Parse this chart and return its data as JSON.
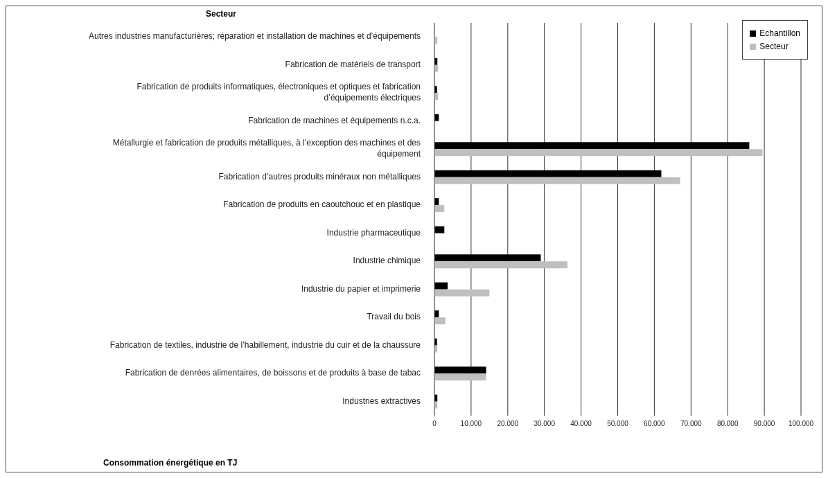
{
  "chart_data": {
    "type": "bar",
    "orientation": "horizontal",
    "ylabel": "Secteur",
    "xlabel": "Consommation énergétique en TJ",
    "categories": [
      "Autres industries manufacturières; réparation et installation de machines et d’équipements",
      "Fabrication de matériels de transport",
      "Fabrication de produits informatiques, électroniques et optiques et fabrication d’équipements électriques",
      "Fabrication de machines et équipements n.c.a.",
      "Métallurgie et fabrication de produits métalliques, à l’exception des machines et des équipement",
      "Fabrication d’autres produits minéraux non métalliques",
      "Fabrication de produits en caoutchouc et en plastique",
      "Industrie pharmaceutique",
      "Industrie chimique",
      "Industrie du papier et imprimerie",
      "Travail du bois",
      "Fabrication de textiles, industrie de l’habillement, industrie du cuir et de la chaussure",
      "Fabrication de denrées alimentaires, de boissons et de produits à base de tabac",
      "Industries extractives"
    ],
    "series": [
      {
        "name": "Echantillon",
        "color": "#000000",
        "values": [
          null,
          800,
          700,
          1200,
          85900,
          61900,
          1200,
          2700,
          29000,
          3600,
          1200,
          700,
          14100,
          800
        ]
      },
      {
        "name": "Secteur",
        "color": "#bfbfbf",
        "values": [
          800,
          1000,
          1000,
          null,
          89500,
          67000,
          2700,
          null,
          36300,
          15000,
          3000,
          800,
          14100,
          800
        ]
      }
    ],
    "xlim": [
      0,
      100000
    ],
    "xticks": [
      0,
      {
        "value": 10000,
        "label": "10.000"
      },
      {
        "value": 20000,
        "label": "20.000"
      },
      {
        "value": 30000,
        "label": "30.000"
      },
      {
        "value": 40000,
        "label": "40.000"
      },
      {
        "value": 50000,
        "label": "50.000"
      },
      {
        "value": 60000,
        "label": "60.000"
      },
      {
        "value": 70000,
        "label": "70.000"
      },
      {
        "value": 80000,
        "label": "80.000"
      },
      {
        "value": 90000,
        "label": "90.000"
      },
      {
        "value": 100000,
        "label": "100.000"
      }
    ],
    "grid": "x",
    "legend": "top right"
  }
}
